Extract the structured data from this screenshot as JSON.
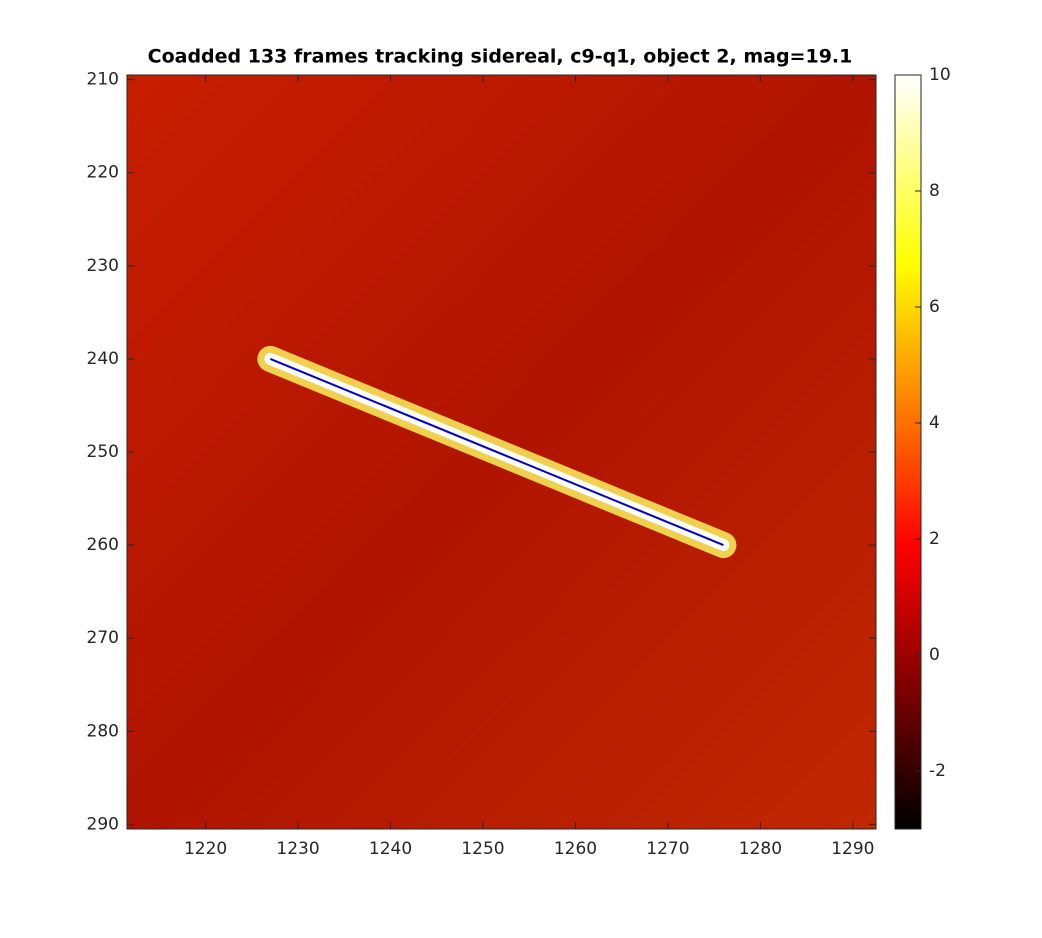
{
  "chart_data": {
    "type": "line",
    "title": "Coadded 133 frames tracking sidereal, c9-q1, object 2, mag=19.1",
    "xlim": [
      1211.5,
      1292.5
    ],
    "ylim": [
      209.5,
      290.5
    ],
    "y_reversed": true,
    "xticks": [
      1220,
      1230,
      1240,
      1250,
      1260,
      1270,
      1280,
      1290
    ],
    "yticks": [
      210,
      220,
      230,
      240,
      250,
      260,
      270,
      280,
      290
    ],
    "colormap": "hot",
    "clim": [
      -3,
      10
    ],
    "cticks": [
      -2,
      0,
      2,
      4,
      6,
      8,
      10
    ],
    "series": [
      {
        "x": [
          1227,
          1276
        ],
        "values": [
          240,
          260
        ],
        "color": "#0000cc"
      }
    ]
  }
}
